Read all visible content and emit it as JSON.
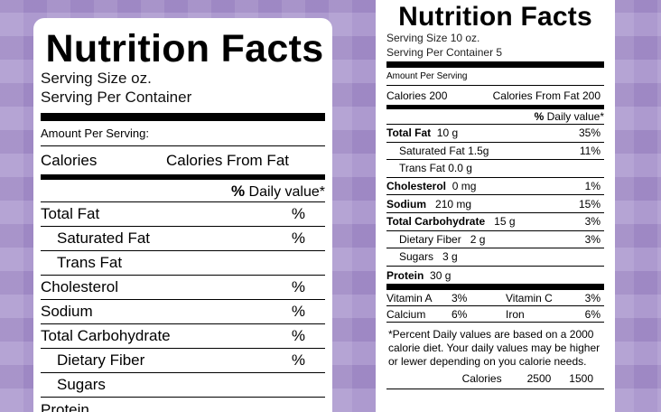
{
  "left_label": {
    "title": "Nutrition Facts",
    "serving_size": "Serving Size oz.",
    "serving_per_container": "Serving Per Container",
    "amount_per_serving": "Amount Per Serving:",
    "calories": "Calories",
    "calories_from_fat": "Calories From Fat",
    "daily_value_pct": "%",
    "daily_value_text": "Daily value*",
    "rows": [
      {
        "name": "Total Fat",
        "value": "%"
      },
      {
        "name": "Saturated Fat",
        "value": "%"
      },
      {
        "name": "Trans Fat",
        "value": ""
      },
      {
        "name": "Cholesterol",
        "value": "%"
      },
      {
        "name": "Sodium",
        "value": "%"
      },
      {
        "name": "Total Carbohydrate",
        "value": "%"
      },
      {
        "name": "Dietary Fiber",
        "value": "%"
      },
      {
        "name": "Sugars",
        "value": ""
      },
      {
        "name": "Protein",
        "value": ""
      }
    ]
  },
  "right_label": {
    "title": "Nutrition Facts",
    "serving_size": "Serving Size 10 oz.",
    "serving_per_container": "Serving Per Container 5",
    "amount_per_serving": "Amount Per Serving",
    "calories": "Calories 200",
    "calories_from_fat": "Calories From Fat 200",
    "daily_value_pct": "%",
    "daily_value_text": "Daily value*",
    "rows": [
      {
        "name": "Total Fat",
        "amount": "10 g",
        "value": "35%"
      },
      {
        "name": "Saturated Fat",
        "amount": "1.5g",
        "value": "11%"
      },
      {
        "name": "Trans Fat",
        "amount": "0.0 g",
        "value": ""
      },
      {
        "name": "Cholesterol",
        "amount": "0 mg",
        "value": "1%"
      },
      {
        "name": "Sodium",
        "amount": "210 mg",
        "value": "15%"
      },
      {
        "name": "Total Carbohydrate",
        "amount": "15 g",
        "value": "3%"
      },
      {
        "name": "Dietary Fiber",
        "amount": "2 g",
        "value": "3%"
      },
      {
        "name": "Sugars",
        "amount": "3 g",
        "value": ""
      },
      {
        "name": "Protein",
        "amount": "30 g",
        "value": ""
      }
    ],
    "vitamins": [
      {
        "a_name": "Vitamin A",
        "a_value": "3%",
        "b_name": "Vitamin C",
        "b_value": "3%"
      },
      {
        "a_name": "Calcium",
        "a_value": "6%",
        "b_name": "Iron",
        "b_value": "6%"
      }
    ],
    "footnote": "*Percent Daily values are based on a 2000 calorie diet. Your daily values may be higher or lewer depending on you calorie needs.",
    "footer_calories": {
      "label": "Calories",
      "v1": "2500",
      "v2": "1500"
    }
  }
}
